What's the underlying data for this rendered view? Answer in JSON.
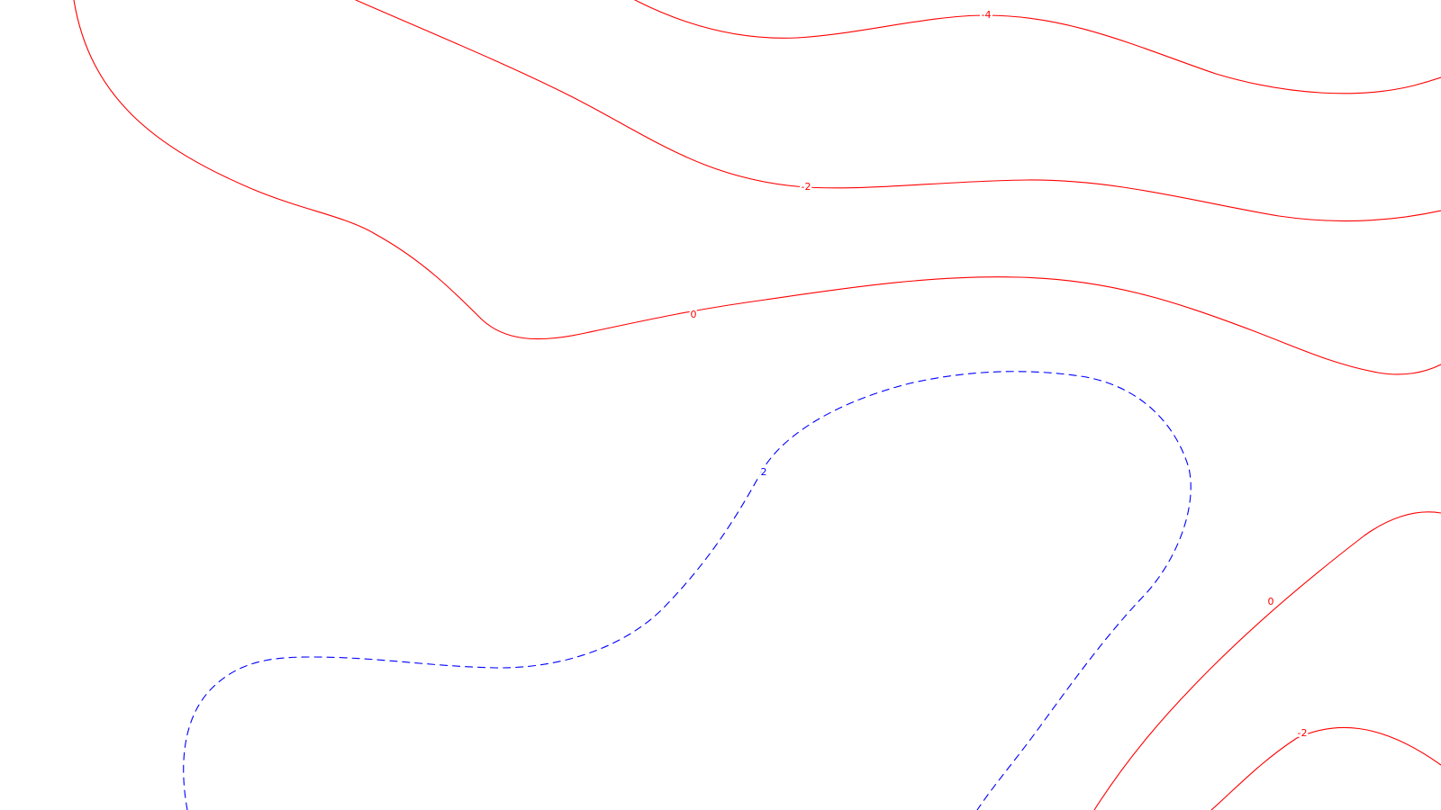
{
  "chart_data": {
    "type": "contour",
    "title": "",
    "xlabel": "",
    "ylabel": "",
    "grid": false,
    "legend": "none",
    "colors": {
      "negative_and_zero": "#ff0000",
      "positive": "#0000ff",
      "background": "#ffffff"
    },
    "contours": [
      {
        "level": -4,
        "label": "-4",
        "color": "#ff0000",
        "style": "solid"
      },
      {
        "level": -2,
        "label": "-2",
        "color": "#ff0000",
        "style": "solid"
      },
      {
        "level": 0,
        "label": "0",
        "color": "#ff0000",
        "style": "solid"
      },
      {
        "level": 2,
        "label": "2",
        "color": "#0000ff",
        "style": "dashed"
      },
      {
        "level": 0,
        "label": "0",
        "color": "#ff0000",
        "style": "solid"
      },
      {
        "level": -2,
        "label": "-2",
        "color": "#ff0000",
        "style": "solid"
      }
    ]
  }
}
